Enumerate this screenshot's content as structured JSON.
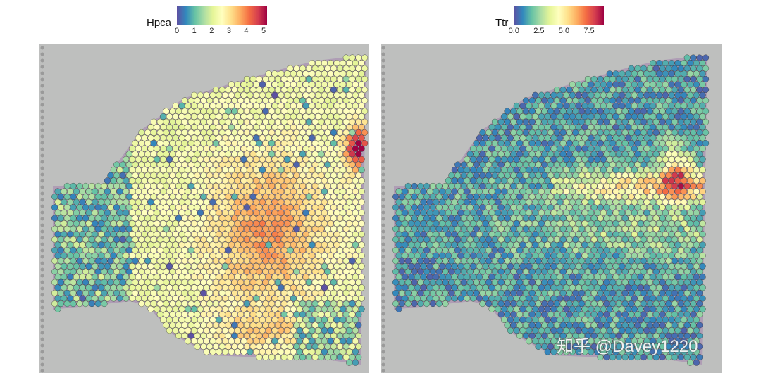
{
  "chart_data": [
    {
      "type": "heatmap",
      "subtype": "spatial-feature-plot",
      "feature": "Hpca",
      "legend": {
        "title": "Hpca",
        "ticks": [
          "0",
          "1",
          "2",
          "3",
          "4",
          "5"
        ],
        "range": [
          0,
          5.2
        ],
        "placement": "top"
      },
      "colormap": [
        "#5E4FA2",
        "#3288BD",
        "#66C2A5",
        "#ABDDA4",
        "#E6F598",
        "#FFFFBF",
        "#FEE08B",
        "#FDAE61",
        "#F46D43",
        "#D53E4F",
        "#9E0142"
      ]
    },
    {
      "type": "heatmap",
      "subtype": "spatial-feature-plot",
      "feature": "Ttr",
      "legend": {
        "title": "Ttr",
        "ticks": [
          "0.0",
          "2.5",
          "5.0",
          "7.5"
        ],
        "range": [
          0,
          9
        ],
        "placement": "top"
      },
      "colormap": [
        "#5E4FA2",
        "#3288BD",
        "#66C2A5",
        "#ABDDA4",
        "#E6F598",
        "#FFFFBF",
        "#FEE08B",
        "#FDAE61",
        "#F46D43",
        "#D53E4F",
        "#9E0142"
      ]
    }
  ],
  "watermark": "知乎 @Davey1220",
  "background_color": "#BEBFBE"
}
